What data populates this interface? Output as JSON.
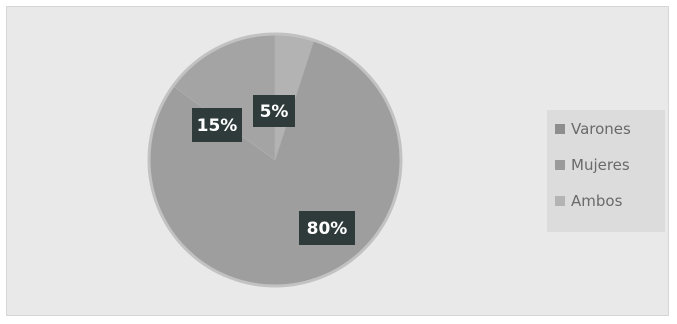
{
  "colors": {
    "background": "#e9e9e9",
    "legend_background": "#dcdcdc",
    "slice_main": "#9f9f9f",
    "slice_edge": "#bdbdbd",
    "label_box": "#2f3b3b",
    "label_text": "#ffffff",
    "legend_text": "#6a6a6a"
  },
  "chart_data": {
    "type": "pie",
    "categories": [
      "Varones",
      "Mujeres",
      "Ambos"
    ],
    "values": [
      80,
      15,
      5
    ],
    "data_labels": [
      "80%",
      "15%",
      "5%"
    ],
    "slice_colors": [
      "#9e9e9e",
      "#a4a4a4",
      "#b3b3b3"
    ],
    "legend": {
      "position": "right",
      "entries": [
        "Varones",
        "Mujeres",
        "Ambos"
      ],
      "swatch_colors": [
        "#8e8e8e",
        "#9a9a9a",
        "#b4b4b4"
      ]
    }
  }
}
